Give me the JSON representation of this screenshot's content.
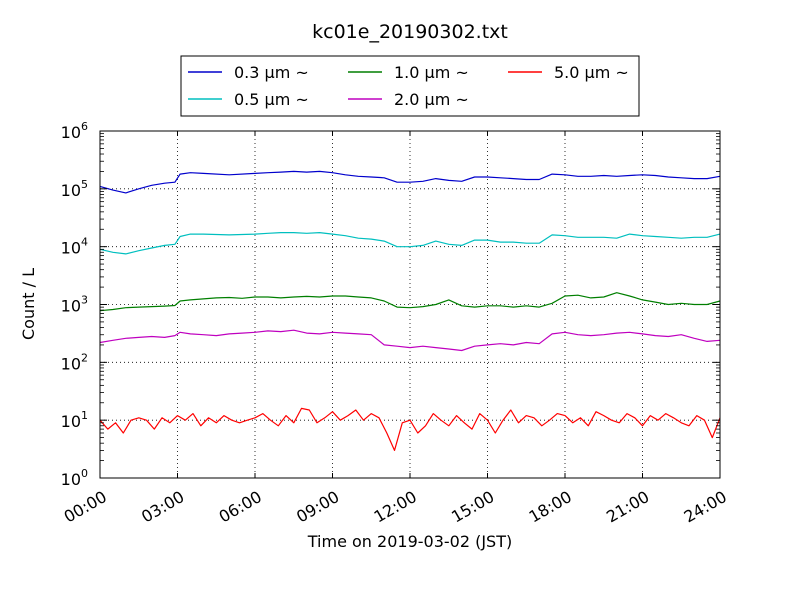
{
  "chart_data": {
    "type": "line",
    "title": "kc01e_20190302.txt",
    "xlabel": "Time on 2019-03-02 (JST)",
    "ylabel": "Count / L",
    "yscale": "log",
    "ylim": [
      1,
      1000000
    ],
    "xlim_hours": [
      0,
      24
    ],
    "xticks": [
      {
        "hour": 0,
        "label": "00:00"
      },
      {
        "hour": 3,
        "label": "03:00"
      },
      {
        "hour": 6,
        "label": "06:00"
      },
      {
        "hour": 9,
        "label": "09:00"
      },
      {
        "hour": 12,
        "label": "12:00"
      },
      {
        "hour": 15,
        "label": "15:00"
      },
      {
        "hour": 18,
        "label": "18:00"
      },
      {
        "hour": 21,
        "label": "21:00"
      },
      {
        "hour": 24,
        "label": "24:00"
      }
    ],
    "yticks": [
      {
        "value": 1,
        "base": "10",
        "exp": "0"
      },
      {
        "value": 10,
        "base": "10",
        "exp": "1"
      },
      {
        "value": 100,
        "base": "10",
        "exp": "2"
      },
      {
        "value": 1000,
        "base": "10",
        "exp": "3"
      },
      {
        "value": 10000,
        "base": "10",
        "exp": "4"
      },
      {
        "value": 100000,
        "base": "10",
        "exp": "5"
      },
      {
        "value": 1000000,
        "base": "10",
        "exp": "6"
      }
    ],
    "grid": true,
    "legend_position": "top",
    "series": [
      {
        "name": "0.3 μm ~",
        "color": "#0000cc",
        "x": [
          0,
          0.5,
          1,
          1.5,
          2,
          2.5,
          2.9,
          3.1,
          3.5,
          4,
          5,
          6,
          6.5,
          7,
          7.5,
          8,
          8.5,
          9,
          9.5,
          10,
          10.5,
          11,
          11.5,
          12,
          12.5,
          13,
          13.5,
          14,
          14.5,
          15,
          15.5,
          16,
          16.5,
          17,
          17.5,
          18,
          18.5,
          19,
          19.5,
          20,
          20.5,
          21,
          21.5,
          22,
          22.5,
          23,
          23.5,
          24
        ],
        "y": [
          110000,
          95000,
          85000,
          100000,
          115000,
          125000,
          130000,
          180000,
          190000,
          185000,
          175000,
          185000,
          190000,
          195000,
          200000,
          195000,
          200000,
          190000,
          175000,
          165000,
          160000,
          155000,
          130000,
          130000,
          135000,
          150000,
          140000,
          135000,
          160000,
          160000,
          155000,
          150000,
          145000,
          145000,
          180000,
          175000,
          165000,
          165000,
          170000,
          165000,
          170000,
          175000,
          170000,
          160000,
          155000,
          150000,
          150000,
          165000
        ]
      },
      {
        "name": "0.5 μm ~",
        "color": "#00bfbf",
        "x": [
          0,
          0.5,
          1,
          1.5,
          2,
          2.5,
          2.9,
          3.1,
          3.5,
          4,
          5,
          6,
          6.5,
          7,
          7.5,
          8,
          8.5,
          9,
          9.5,
          10,
          10.5,
          11,
          11.5,
          12,
          12.5,
          13,
          13.5,
          14,
          14.5,
          15,
          15.5,
          16,
          16.5,
          17,
          17.5,
          18,
          18.5,
          19,
          19.5,
          20,
          20.5,
          21,
          21.5,
          22,
          22.5,
          23,
          23.5,
          24
        ],
        "y": [
          9000,
          8000,
          7500,
          8500,
          9500,
          10500,
          11000,
          15000,
          16500,
          16500,
          16000,
          16500,
          17000,
          17500,
          17500,
          17000,
          17500,
          16500,
          15500,
          14000,
          13500,
          12500,
          10000,
          10000,
          10500,
          12500,
          11000,
          10500,
          13000,
          13000,
          12000,
          12000,
          11500,
          11500,
          16000,
          15500,
          14500,
          14500,
          14500,
          14000,
          16500,
          15500,
          15000,
          14500,
          14000,
          14500,
          14500,
          16500
        ]
      },
      {
        "name": "1.0 μm ~",
        "color": "#007f00",
        "x": [
          0,
          0.5,
          1,
          1.5,
          2,
          2.5,
          2.9,
          3.1,
          3.5,
          4,
          4.5,
          5,
          5.5,
          6,
          6.5,
          7,
          7.5,
          8,
          8.5,
          9,
          9.5,
          10,
          10.5,
          11,
          11.5,
          12,
          12.5,
          13,
          13.5,
          14,
          14.5,
          15,
          15.5,
          16,
          16.5,
          17,
          17.5,
          18,
          18.5,
          19,
          19.5,
          20,
          20.5,
          21,
          21.5,
          22,
          22.5,
          23,
          23.5,
          24
        ],
        "y": [
          780,
          820,
          880,
          900,
          920,
          940,
          960,
          1150,
          1200,
          1250,
          1300,
          1320,
          1280,
          1350,
          1350,
          1300,
          1350,
          1380,
          1350,
          1400,
          1400,
          1350,
          1300,
          1150,
          900,
          880,
          920,
          1000,
          1200,
          950,
          900,
          950,
          950,
          900,
          950,
          900,
          1050,
          1400,
          1450,
          1300,
          1350,
          1600,
          1400,
          1200,
          1100,
          1000,
          1050,
          1000,
          1000,
          1150
        ]
      },
      {
        "name": "2.0 μm ~",
        "color": "#bf00bf",
        "x": [
          0,
          0.5,
          1,
          1.5,
          2,
          2.5,
          2.9,
          3.1,
          3.5,
          4,
          4.5,
          5,
          5.5,
          6,
          6.5,
          7,
          7.5,
          8,
          8.5,
          9,
          9.5,
          10,
          10.5,
          11,
          11.5,
          12,
          12.5,
          13,
          13.5,
          14,
          14.5,
          15,
          15.5,
          16,
          16.5,
          17,
          17.5,
          18,
          18.5,
          19,
          19.5,
          20,
          20.5,
          21,
          21.5,
          22,
          22.5,
          23,
          23.5,
          24
        ],
        "y": [
          220,
          240,
          260,
          270,
          280,
          270,
          290,
          330,
          310,
          300,
          290,
          310,
          320,
          330,
          350,
          340,
          360,
          320,
          310,
          330,
          320,
          310,
          300,
          200,
          190,
          180,
          190,
          180,
          170,
          160,
          190,
          200,
          210,
          200,
          220,
          210,
          310,
          330,
          300,
          290,
          300,
          320,
          330,
          310,
          290,
          280,
          300,
          260,
          230,
          240
        ]
      },
      {
        "name": "5.0 μm ~",
        "color": "#ff0000",
        "x": [
          0,
          0.3,
          0.6,
          0.9,
          1.2,
          1.5,
          1.8,
          2.1,
          2.4,
          2.7,
          3.0,
          3.3,
          3.6,
          3.9,
          4.2,
          4.5,
          4.8,
          5.1,
          5.4,
          5.7,
          6.0,
          6.3,
          6.6,
          6.9,
          7.2,
          7.5,
          7.8,
          8.1,
          8.4,
          8.7,
          9.0,
          9.3,
          9.6,
          9.9,
          10.2,
          10.5,
          10.8,
          11.1,
          11.4,
          11.7,
          12.0,
          12.3,
          12.6,
          12.9,
          13.2,
          13.5,
          13.8,
          14.1,
          14.4,
          14.7,
          15.0,
          15.3,
          15.6,
          15.9,
          16.2,
          16.5,
          16.8,
          17.1,
          17.4,
          17.7,
          18.0,
          18.3,
          18.6,
          18.9,
          19.2,
          19.5,
          19.8,
          20.1,
          20.4,
          20.7,
          21.0,
          21.3,
          21.6,
          21.9,
          22.2,
          22.5,
          22.8,
          23.1,
          23.4,
          23.7,
          24.0
        ],
        "y": [
          10,
          7,
          9,
          6,
          10,
          11,
          10,
          7,
          11,
          9,
          12,
          10,
          13,
          8,
          11,
          9,
          12,
          10,
          9,
          10,
          11,
          13,
          10,
          8,
          12,
          9,
          16,
          15,
          9,
          11,
          14,
          10,
          12,
          15,
          10,
          13,
          11,
          6,
          3,
          9,
          10,
          6,
          8,
          13,
          10,
          8,
          12,
          9,
          7,
          13,
          10,
          6,
          10,
          15,
          9,
          12,
          11,
          8,
          10,
          13,
          12,
          9,
          11,
          8,
          14,
          12,
          10,
          9,
          13,
          11,
          8,
          12,
          10,
          13,
          11,
          9,
          8,
          12,
          10,
          5,
          11
        ]
      }
    ]
  }
}
